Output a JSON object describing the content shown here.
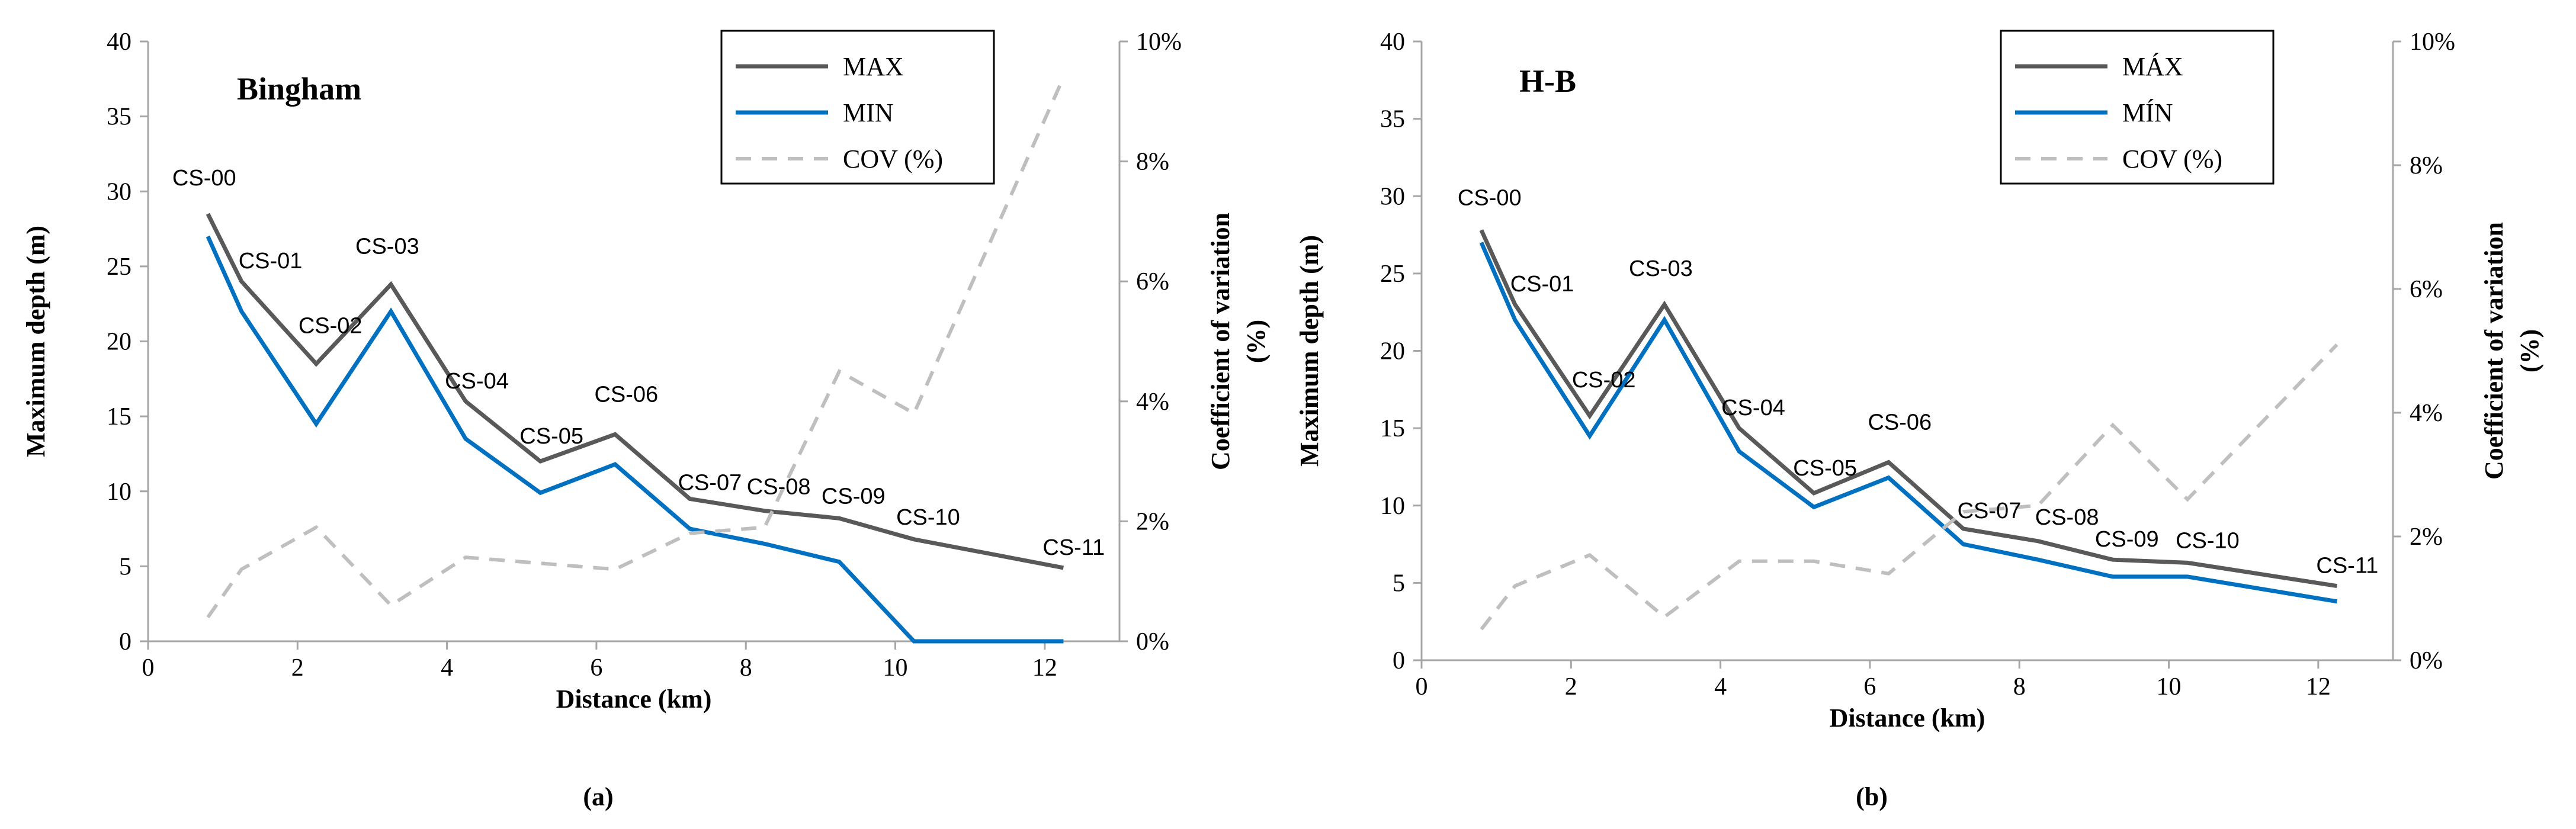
{
  "colors": {
    "max": "#595959",
    "min": "#0070c0",
    "cov": "#bfbfbf",
    "axis": "#a6a6a6"
  },
  "chart_data": [
    {
      "type": "line",
      "panel_label": "(a)",
      "title": "Bingham",
      "xlabel": "Distance (km)",
      "ylabel": "Maximum depth (m)",
      "y2label_line1": "Coefficient of variation",
      "y2label_line2": "(%)",
      "xlim": [
        0,
        13
      ],
      "ylim": [
        0,
        40
      ],
      "y2lim": [
        0,
        10
      ],
      "x_ticks": [
        0,
        2,
        4,
        6,
        8,
        10,
        12
      ],
      "x_tick_labels": [
        "0",
        "2",
        "4",
        "6",
        "8",
        "10",
        "12"
      ],
      "y_ticks": [
        0,
        5,
        10,
        15,
        20,
        25,
        30,
        35,
        40
      ],
      "y_tick_labels": [
        "0",
        "5",
        "10",
        "15",
        "20",
        "25",
        "30",
        "35",
        "40"
      ],
      "y2_ticks": [
        0,
        2,
        4,
        6,
        8,
        10
      ],
      "y2_tick_labels": [
        "0%",
        "2%",
        "4%",
        "6%",
        "8%",
        "10%"
      ],
      "legend_position": "top-right",
      "x": [
        0.8,
        1.25,
        2.25,
        3.25,
        4.25,
        5.25,
        6.25,
        7.25,
        8.25,
        9.25,
        10.25,
        12.25
      ],
      "series": [
        {
          "name": "MAX",
          "axis": "left",
          "values": [
            28.5,
            24.0,
            18.5,
            23.8,
            16.0,
            12.0,
            13.8,
            9.5,
            8.7,
            8.2,
            6.8,
            4.9
          ]
        },
        {
          "name": "MIN",
          "axis": "left",
          "values": [
            27.0,
            22.0,
            14.5,
            22.0,
            13.5,
            9.9,
            11.8,
            7.5,
            6.5,
            5.3,
            0.0,
            0.0
          ]
        },
        {
          "name": "COV (%)",
          "axis": "right",
          "values": [
            0.4,
            1.2,
            1.9,
            0.6,
            1.4,
            1.3,
            1.2,
            1.8,
            1.9,
            4.5,
            3.8,
            9.4
          ]
        }
      ],
      "point_labels": [
        "CS-00",
        "CS-01",
        "CS-02",
        "CS-03",
        "CS-04",
        "CS-05",
        "CS-06",
        "CS-07",
        "CS-08",
        "CS-09",
        "CS-10",
        "CS-11"
      ]
    },
    {
      "type": "line",
      "panel_label": "(b)",
      "title": "H-B",
      "xlabel": "Distance (km)",
      "ylabel": "Maximum depth (m)",
      "y2label_line1": "Coefficient of variation",
      "y2label_line2": "(%)",
      "xlim": [
        0,
        13
      ],
      "ylim": [
        0,
        40
      ],
      "y2lim": [
        0,
        10
      ],
      "x_ticks": [
        0,
        2,
        4,
        6,
        8,
        10,
        12
      ],
      "x_tick_labels": [
        "0",
        "2",
        "4",
        "6",
        "8",
        "10",
        "12"
      ],
      "y_ticks": [
        0,
        5,
        10,
        15,
        20,
        25,
        30,
        35,
        40
      ],
      "y_tick_labels": [
        "0",
        "5",
        "10",
        "15",
        "20",
        "25",
        "30",
        "35",
        "40"
      ],
      "y2_ticks": [
        0,
        2,
        4,
        6,
        8,
        10
      ],
      "y2_tick_labels": [
        "0%",
        "2%",
        "4%",
        "6%",
        "8%",
        "10%"
      ],
      "legend_position": "top-right",
      "x": [
        0.8,
        1.25,
        2.25,
        3.25,
        4.25,
        5.25,
        6.25,
        7.25,
        8.25,
        9.25,
        10.25,
        12.25
      ],
      "series": [
        {
          "name": "MÁX",
          "axis": "left",
          "values": [
            27.8,
            23.0,
            15.8,
            23.0,
            15.0,
            10.8,
            12.8,
            8.5,
            7.7,
            6.5,
            6.3,
            4.8
          ]
        },
        {
          "name": "MÍN",
          "axis": "left",
          "values": [
            27.0,
            22.0,
            14.5,
            22.0,
            13.5,
            9.9,
            11.8,
            7.5,
            6.5,
            5.4,
            5.4,
            3.8
          ]
        },
        {
          "name": "COV (%)",
          "axis": "right",
          "values": [
            0.5,
            1.2,
            1.7,
            0.7,
            1.6,
            1.6,
            1.4,
            2.4,
            2.5,
            3.8,
            2.6,
            5.1
          ]
        }
      ],
      "point_labels": [
        "CS-00",
        "CS-01",
        "CS-02",
        "CS-03",
        "CS-04",
        "CS-05",
        "CS-06",
        "CS-07",
        "CS-08",
        "CS-09",
        "CS-10",
        "CS-11"
      ]
    }
  ]
}
